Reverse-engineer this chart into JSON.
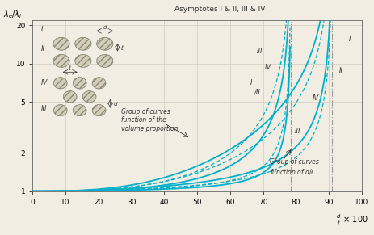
{
  "title": "Asymptotes I & II, III & IV",
  "xlabel_text": "d/ℓ × 100",
  "ylabel_text": "λ_e/λ_i",
  "xlim": [
    0,
    100
  ],
  "ylim_log": [
    1.0,
    22.0
  ],
  "xticks": [
    0,
    10,
    20,
    30,
    40,
    50,
    60,
    70,
    80,
    90,
    100
  ],
  "yticks": [
    1,
    2,
    5,
    10,
    20
  ],
  "asym_A": 78.5,
  "asym_B": 91.0,
  "bg_color": "#f2ede3",
  "curve_color": "#00b0cc",
  "grid_color": "#ccccbb",
  "lc": "#333333"
}
